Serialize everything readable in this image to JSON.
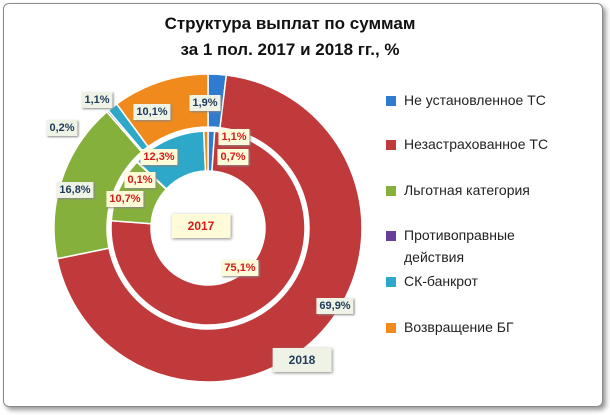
{
  "chart_data": {
    "type": "donut",
    "title": [
      "Структура выплат по суммам",
      "за 1 пол. 2017 и 2018 гг., %"
    ],
    "categories": [
      "Не установленное ТС",
      "Незастрахованное ТС",
      "Льготная категория",
      "Противоправные действия",
      "СК-банкрот",
      "Возвращение БГ"
    ],
    "colors": [
      "#2f7bd0",
      "#c0393b",
      "#86b03c",
      "#6a3d9a",
      "#2ea8c8",
      "#f08a1c"
    ],
    "series": [
      {
        "name": "2017",
        "ring": "inner",
        "values": [
          1.1,
          75.1,
          10.7,
          0.1,
          12.3,
          0.7
        ],
        "labels": [
          "1,1%",
          "75,1%",
          "10,7%",
          "0,1%",
          "12,3%",
          "0,7%"
        ]
      },
      {
        "name": "2018",
        "ring": "outer",
        "values": [
          1.9,
          69.9,
          16.8,
          0.2,
          1.1,
          10.1
        ],
        "labels": [
          "1,9%",
          "69,9%",
          "16,8%",
          "0,2%",
          "1,1%",
          "10,1%"
        ]
      }
    ],
    "legend_position": "right",
    "legend": [
      "Не установленное ТС",
      "Незастрахованное ТС",
      "Льготная категория",
      "Противоправные",
      "действия",
      "СК-банкрот",
      "Возвращение БГ"
    ]
  }
}
